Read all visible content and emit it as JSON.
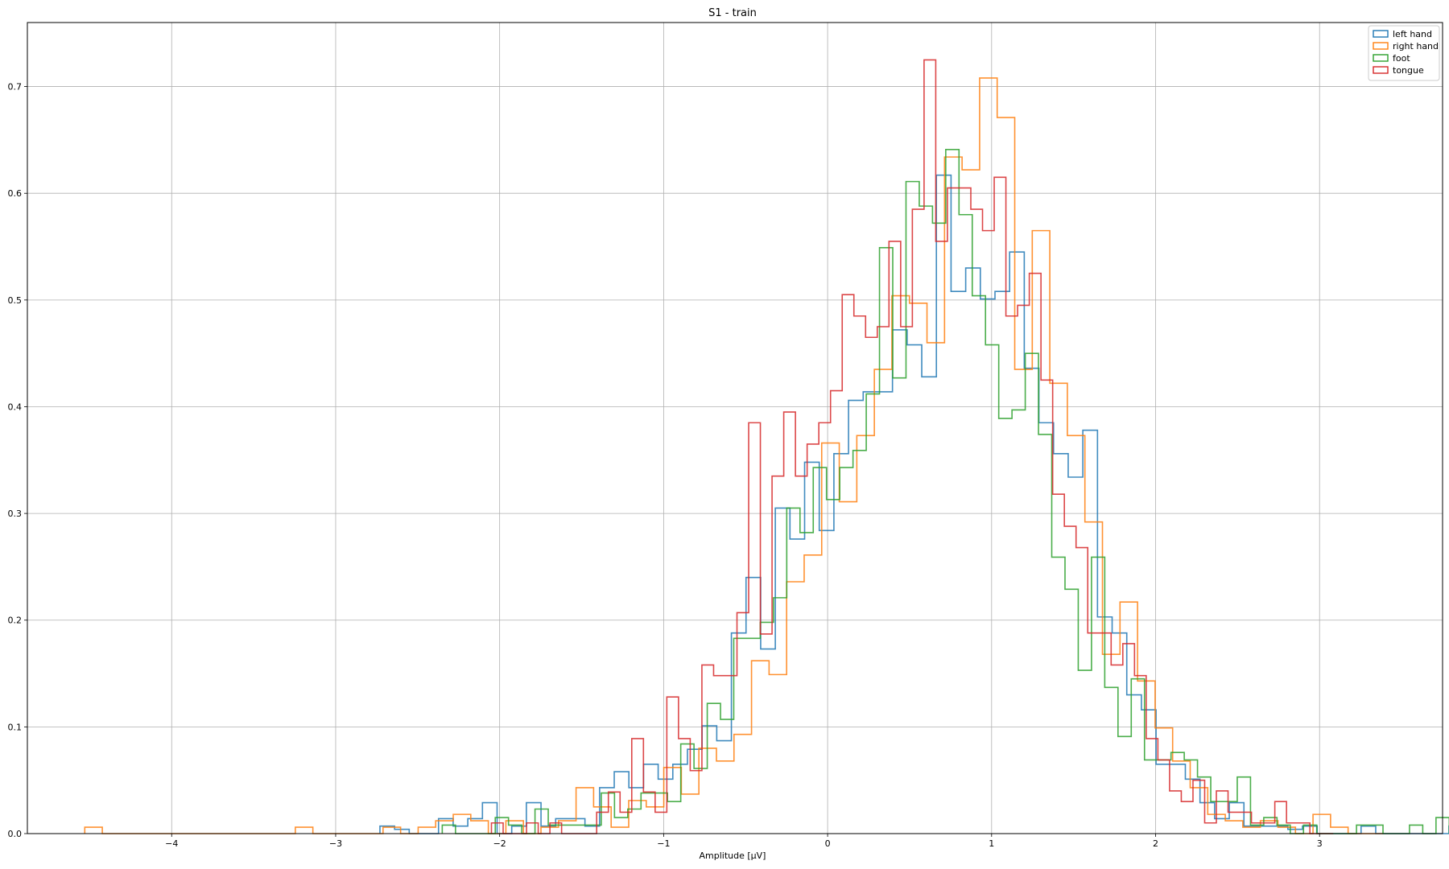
{
  "chart_data": {
    "type": "histogram",
    "title": "S1 - train",
    "xlabel": "Amplitude [μV]",
    "ylabel": "",
    "xlim": [
      -4.88,
      3.75
    ],
    "ylim": [
      0,
      0.76
    ],
    "xticks": [
      -4,
      -3,
      -2,
      -1,
      0,
      1,
      2,
      3
    ],
    "xtick_labels": [
      "−4",
      "−3",
      "−2",
      "−1",
      "0",
      "1",
      "2",
      "3"
    ],
    "yticks": [
      0.0,
      0.1,
      0.2,
      0.3,
      0.4,
      0.5,
      0.6,
      0.7
    ],
    "ytick_labels": [
      "0.0",
      "0.1",
      "0.2",
      "0.3",
      "0.4",
      "0.5",
      "0.6",
      "0.7"
    ],
    "grid": true,
    "legend_position": "top-right",
    "series": [
      {
        "name": "left hand",
        "color": "#1f77b4",
        "bin_start": -2.73,
        "bin_width": 0.0893,
        "values": [
          0.007,
          0.004,
          0.0,
          0.0,
          0.014,
          0.007,
          0.014,
          0.029,
          0.0,
          0.007,
          0.029,
          0.007,
          0.014,
          0.014,
          0.007,
          0.043,
          0.058,
          0.043,
          0.065,
          0.051,
          0.065,
          0.079,
          0.101,
          0.087,
          0.188,
          0.24,
          0.173,
          0.305,
          0.276,
          0.348,
          0.284,
          0.356,
          0.406,
          0.414,
          0.414,
          0.472,
          0.458,
          0.428,
          0.617,
          0.508,
          0.53,
          0.501,
          0.508,
          0.545,
          0.436,
          0.385,
          0.356,
          0.334,
          0.378,
          0.203,
          0.188,
          0.13,
          0.116,
          0.065,
          0.065,
          0.051,
          0.029,
          0.014,
          0.029,
          0.007,
          0.007,
          0.007,
          0.004,
          0.007,
          0.0,
          0.0,
          0.0,
          0.007,
          0.0,
          0.0,
          0.0,
          0.0,
          0.0,
          0.007,
          0.0
        ]
      },
      {
        "name": "right hand",
        "color": "#ff7f0e",
        "bin_start": -4.53,
        "bin_width": 0.107,
        "values": [
          0.006,
          0.0,
          0.0,
          0.0,
          0.0,
          0.0,
          0.0,
          0.0,
          0.0,
          0.0,
          0.0,
          0.0,
          0.006,
          0.0,
          0.0,
          0.0,
          0.0,
          0.006,
          0.0,
          0.006,
          0.012,
          0.018,
          0.012,
          0.0,
          0.012,
          0.0,
          0.006,
          0.012,
          0.043,
          0.025,
          0.006,
          0.031,
          0.025,
          0.062,
          0.037,
          0.08,
          0.068,
          0.093,
          0.162,
          0.149,
          0.236,
          0.261,
          0.366,
          0.311,
          0.373,
          0.435,
          0.504,
          0.497,
          0.46,
          0.634,
          0.622,
          0.708,
          0.671,
          0.435,
          0.565,
          0.422,
          0.373,
          0.292,
          0.168,
          0.217,
          0.143,
          0.099,
          0.068,
          0.043,
          0.018,
          0.012,
          0.006,
          0.012,
          0.006,
          0.0,
          0.018,
          0.006,
          0.0,
          0.0
        ]
      },
      {
        "name": "foot",
        "color": "#2ca02c",
        "bin_start": -2.35,
        "bin_width": 0.0808,
        "values": [
          0.008,
          0.0,
          0.0,
          0.0,
          0.015,
          0.008,
          0.0,
          0.023,
          0.008,
          0.008,
          0.008,
          0.008,
          0.038,
          0.015,
          0.023,
          0.038,
          0.038,
          0.03,
          0.084,
          0.061,
          0.122,
          0.107,
          0.183,
          0.183,
          0.198,
          0.221,
          0.305,
          0.282,
          0.343,
          0.313,
          0.343,
          0.359,
          0.412,
          0.549,
          0.427,
          0.611,
          0.588,
          0.572,
          0.641,
          0.58,
          0.504,
          0.458,
          0.389,
          0.397,
          0.45,
          0.374,
          0.259,
          0.229,
          0.153,
          0.259,
          0.137,
          0.091,
          0.145,
          0.069,
          0.069,
          0.076,
          0.069,
          0.053,
          0.03,
          0.03,
          0.053,
          0.008,
          0.015,
          0.008,
          0.0,
          0.008,
          0.0,
          0.0,
          0.0,
          0.008,
          0.008,
          0.0,
          0.0,
          0.008,
          0.0,
          0.015
        ]
      },
      {
        "name": "tongue",
        "color": "#d62728",
        "bin_start": -2.05,
        "bin_width": 0.0713,
        "values": [
          0.01,
          0.0,
          0.0,
          0.01,
          0.0,
          0.01,
          0.0,
          0.0,
          0.0,
          0.02,
          0.039,
          0.02,
          0.089,
          0.039,
          0.02,
          0.128,
          0.089,
          0.059,
          0.158,
          0.148,
          0.148,
          0.207,
          0.385,
          0.187,
          0.335,
          0.395,
          0.335,
          0.365,
          0.385,
          0.415,
          0.505,
          0.485,
          0.465,
          0.475,
          0.555,
          0.475,
          0.585,
          0.725,
          0.555,
          0.605,
          0.605,
          0.585,
          0.565,
          0.615,
          0.485,
          0.495,
          0.525,
          0.425,
          0.318,
          0.288,
          0.268,
          0.188,
          0.188,
          0.158,
          0.178,
          0.148,
          0.089,
          0.069,
          0.04,
          0.03,
          0.05,
          0.01,
          0.04,
          0.02,
          0.02,
          0.01,
          0.01,
          0.03,
          0.01,
          0.01,
          0.0,
          0.0
        ]
      }
    ]
  }
}
